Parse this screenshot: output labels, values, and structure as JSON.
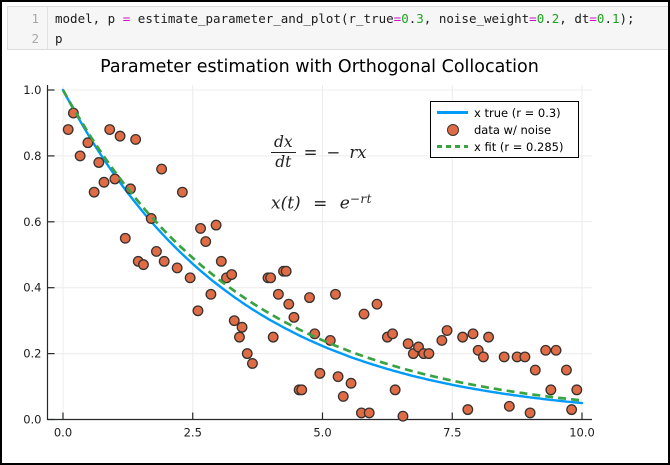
{
  "code_cell": {
    "lines": [
      {
        "number": "1",
        "tokens": [
          {
            "t": "model, p ",
            "c": "plain"
          },
          {
            "t": "=",
            "c": "op"
          },
          {
            "t": " estimate_parameter_and_plot(r_true",
            "c": "plain"
          },
          {
            "t": "=",
            "c": "op"
          },
          {
            "t": "0",
            "c": "num"
          },
          {
            "t": ".",
            "c": "plain"
          },
          {
            "t": "3",
            "c": "num"
          },
          {
            "t": ", noise_weight",
            "c": "plain"
          },
          {
            "t": "=",
            "c": "op"
          },
          {
            "t": "0",
            "c": "num"
          },
          {
            "t": ".",
            "c": "plain"
          },
          {
            "t": "2",
            "c": "num"
          },
          {
            "t": ", dt",
            "c": "plain"
          },
          {
            "t": "=",
            "c": "op"
          },
          {
            "t": "0",
            "c": "num"
          },
          {
            "t": ".",
            "c": "plain"
          },
          {
            "t": "1",
            "c": "num"
          },
          {
            "t": ");",
            "c": "plain"
          }
        ]
      },
      {
        "number": "2",
        "tokens": [
          {
            "t": "p",
            "c": "plain"
          }
        ]
      }
    ]
  },
  "plot": {
    "title": "Parameter estimation with Orthogonal Collocation",
    "legend": {
      "entries": [
        {
          "label": "x true (r = 0.3)",
          "swatch": "line",
          "color": "#009af9"
        },
        {
          "label": "data w/ noise",
          "swatch": "marker",
          "color": "#e06c45",
          "stroke": "#373230"
        },
        {
          "label": "x fit (r = 0.285)",
          "swatch": "dash",
          "color": "#39a343"
        }
      ]
    },
    "equations": {
      "ode": {
        "num": "dx",
        "den": "dt",
        "eq": "=",
        "minus": "−",
        "rhs": "rx"
      },
      "solution": {
        "lhs": "x(t)",
        "eq": "=",
        "base": "e",
        "exp": "−rt"
      }
    }
  },
  "chart_data": {
    "type": "scatter",
    "title": "Parameter estimation with Orthogonal Collocation",
    "xlabel": "",
    "ylabel": "",
    "xlim": [
      0,
      10
    ],
    "ylim": [
      0,
      1
    ],
    "xticks": [
      0,
      2.5,
      5,
      7.5,
      10
    ],
    "xtick_labels": [
      "0.0",
      "2.5",
      "5.0",
      "7.5",
      "10.0"
    ],
    "yticks": [
      0,
      0.2,
      0.4,
      0.6,
      0.8,
      1
    ],
    "ytick_labels": [
      "0.0",
      "0.2",
      "0.4",
      "0.6",
      "0.8",
      "1.0"
    ],
    "grid": true,
    "legend_position": "top-right",
    "series": [
      {
        "name": "x true (r = 0.3)",
        "type": "line",
        "style": "solid",
        "color": "#009af9",
        "model": "x(t) = exp(-r t)",
        "r": 0.3
      },
      {
        "name": "data w/ noise",
        "type": "scatter",
        "color": "#e06c45",
        "marker_stroke": "#373230",
        "points": [
          [
            0.1,
            0.88
          ],
          [
            0.2,
            0.93
          ],
          [
            0.33,
            0.8
          ],
          [
            0.48,
            0.84
          ],
          [
            0.6,
            0.69
          ],
          [
            0.69,
            0.78
          ],
          [
            0.79,
            0.72
          ],
          [
            0.9,
            0.88
          ],
          [
            1.0,
            0.73
          ],
          [
            1.1,
            0.86
          ],
          [
            1.2,
            0.55
          ],
          [
            1.3,
            0.7
          ],
          [
            1.4,
            0.85
          ],
          [
            1.45,
            0.48
          ],
          [
            1.55,
            0.47
          ],
          [
            1.7,
            0.61
          ],
          [
            1.8,
            0.51
          ],
          [
            1.9,
            0.76
          ],
          [
            1.95,
            0.48
          ],
          [
            2.2,
            0.46
          ],
          [
            2.3,
            0.69
          ],
          [
            2.45,
            0.43
          ],
          [
            2.6,
            0.33
          ],
          [
            2.65,
            0.58
          ],
          [
            2.75,
            0.54
          ],
          [
            2.85,
            0.38
          ],
          [
            2.95,
            0.59
          ],
          [
            3.05,
            0.48
          ],
          [
            3.15,
            0.43
          ],
          [
            3.25,
            0.44
          ],
          [
            3.3,
            0.3
          ],
          [
            3.4,
            0.25
          ],
          [
            3.45,
            0.28
          ],
          [
            3.55,
            0.2
          ],
          [
            3.65,
            0.17
          ],
          [
            3.95,
            0.43
          ],
          [
            4.0,
            0.43
          ],
          [
            4.05,
            0.25
          ],
          [
            4.15,
            0.38
          ],
          [
            4.25,
            0.45
          ],
          [
            4.3,
            0.45
          ],
          [
            4.35,
            0.35
          ],
          [
            4.45,
            0.31
          ],
          [
            4.55,
            0.09
          ],
          [
            4.6,
            0.09
          ],
          [
            4.75,
            0.37
          ],
          [
            4.85,
            0.26
          ],
          [
            4.95,
            0.14
          ],
          [
            5.15,
            0.24
          ],
          [
            5.25,
            0.38
          ],
          [
            5.3,
            0.13
          ],
          [
            5.4,
            0.07
          ],
          [
            5.55,
            0.11
          ],
          [
            5.75,
            0.02
          ],
          [
            5.8,
            0.32
          ],
          [
            5.9,
            0.02
          ],
          [
            6.05,
            0.35
          ],
          [
            6.25,
            0.25
          ],
          [
            6.35,
            0.26
          ],
          [
            6.4,
            0.09
          ],
          [
            6.55,
            0.01
          ],
          [
            6.65,
            0.23
          ],
          [
            6.75,
            0.2
          ],
          [
            6.85,
            0.22
          ],
          [
            6.95,
            0.2
          ],
          [
            7.05,
            0.2
          ],
          [
            7.3,
            0.24
          ],
          [
            7.4,
            0.27
          ],
          [
            7.7,
            0.25
          ],
          [
            7.8,
            0.03
          ],
          [
            7.9,
            0.26
          ],
          [
            8.0,
            0.21
          ],
          [
            8.1,
            0.19
          ],
          [
            8.2,
            0.25
          ],
          [
            8.5,
            0.19
          ],
          [
            8.6,
            0.04
          ],
          [
            8.75,
            0.19
          ],
          [
            8.9,
            0.19
          ],
          [
            9.0,
            0.02
          ],
          [
            9.1,
            0.15
          ],
          [
            9.3,
            0.21
          ],
          [
            9.4,
            0.09
          ],
          [
            9.5,
            0.21
          ],
          [
            9.7,
            0.15
          ],
          [
            9.8,
            0.03
          ],
          [
            9.9,
            0.09
          ]
        ]
      },
      {
        "name": "x fit (r = 0.285)",
        "type": "line",
        "style": "dashed",
        "color": "#39a343",
        "model": "x(t) = exp(-r t)",
        "r": 0.285
      }
    ]
  }
}
